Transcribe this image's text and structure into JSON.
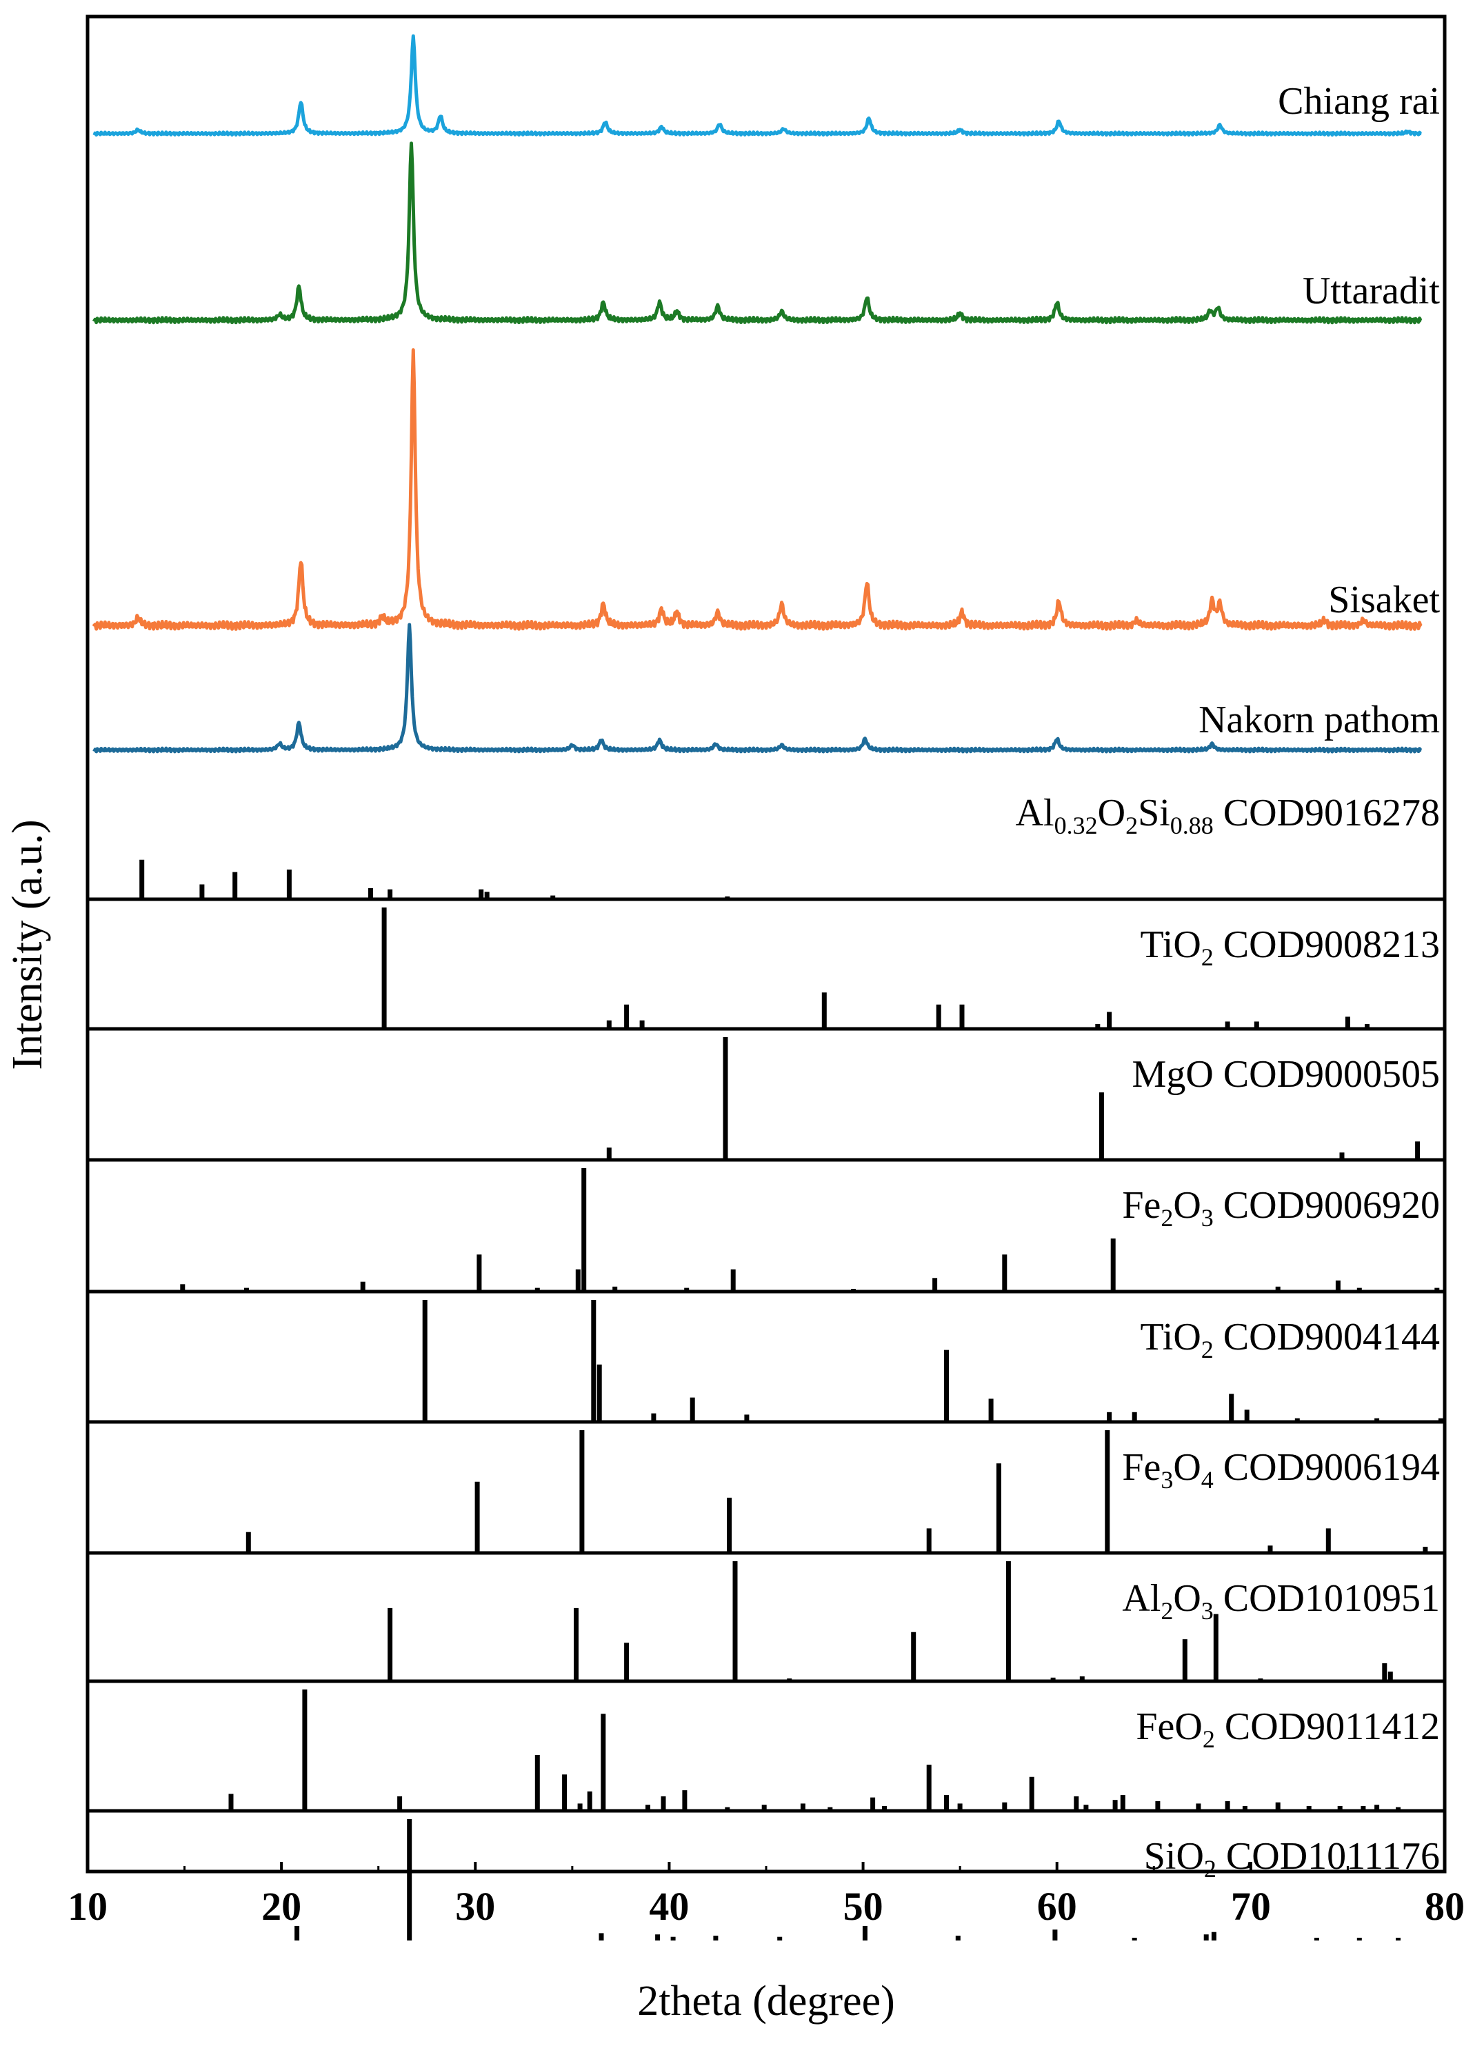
{
  "chart_data": {
    "type": "line",
    "xlabel": "2theta (degree)",
    "ylabel": "Intensity (a.u.)",
    "xlim": [
      10,
      80
    ],
    "xticks": [
      10,
      20,
      30,
      40,
      50,
      60,
      70,
      80
    ],
    "grid": false,
    "samples": [
      {
        "name": "Chiang rai",
        "color": "#1ba3dc",
        "baseline_frac": 0.045,
        "peaks": [
          [
            12.6,
            0.04
          ],
          [
            21.0,
            0.33
          ],
          [
            26.8,
            1.0
          ],
          [
            28.2,
            0.18
          ],
          [
            36.7,
            0.12
          ],
          [
            39.6,
            0.07
          ],
          [
            42.6,
            0.1
          ],
          [
            45.9,
            0.05
          ],
          [
            50.3,
            0.16
          ],
          [
            55.0,
            0.04
          ],
          [
            60.1,
            0.13
          ],
          [
            68.4,
            0.09
          ],
          [
            78.1,
            0.02
          ]
        ]
      },
      {
        "name": "Uttaradit",
        "color": "#1c7a25",
        "baseline_frac": 0.03,
        "peaks": [
          [
            19.9,
            0.03
          ],
          [
            20.9,
            0.19
          ],
          [
            26.7,
            1.0
          ],
          [
            36.6,
            0.1
          ],
          [
            39.5,
            0.1
          ],
          [
            40.4,
            0.05
          ],
          [
            42.5,
            0.08
          ],
          [
            45.8,
            0.05
          ],
          [
            50.2,
            0.13
          ],
          [
            55.0,
            0.04
          ],
          [
            60.0,
            0.1
          ],
          [
            67.9,
            0.05
          ],
          [
            68.3,
            0.07
          ]
        ]
      },
      {
        "name": "Sisaket",
        "color": "#f57a3a",
        "baseline_frac": 0.02,
        "peaks": [
          [
            12.6,
            0.03
          ],
          [
            21.0,
            0.24
          ],
          [
            25.2,
            0.03
          ],
          [
            26.8,
            1.0
          ],
          [
            36.6,
            0.08
          ],
          [
            39.6,
            0.06
          ],
          [
            40.4,
            0.05
          ],
          [
            42.5,
            0.05
          ],
          [
            45.8,
            0.08
          ],
          [
            50.2,
            0.16
          ],
          [
            55.1,
            0.05
          ],
          [
            60.1,
            0.09
          ],
          [
            64.1,
            0.02
          ],
          [
            68.0,
            0.09
          ],
          [
            68.4,
            0.08
          ],
          [
            73.8,
            0.02
          ],
          [
            75.8,
            0.02
          ]
        ]
      },
      {
        "name": "Nakorn pathom",
        "color": "#1d6b99",
        "baseline_frac": 0.03,
        "peaks": [
          [
            19.9,
            0.05
          ],
          [
            20.9,
            0.22
          ],
          [
            26.6,
            1.0
          ],
          [
            35.0,
            0.04
          ],
          [
            36.5,
            0.08
          ],
          [
            39.5,
            0.08
          ],
          [
            42.4,
            0.05
          ],
          [
            45.8,
            0.04
          ],
          [
            50.1,
            0.09
          ],
          [
            60.0,
            0.09
          ],
          [
            68.0,
            0.05
          ]
        ]
      }
    ],
    "references": [
      {
        "formula": [
          "Al",
          "0.32",
          "O",
          "2",
          "Si",
          "0.88"
        ],
        "code": "COD9016278",
        "lines": [
          [
            12.8,
            0.32
          ],
          [
            15.9,
            0.12
          ],
          [
            17.6,
            0.22
          ],
          [
            20.4,
            0.24
          ],
          [
            24.6,
            0.09
          ],
          [
            25.6,
            0.08
          ],
          [
            30.3,
            0.08
          ],
          [
            30.6,
            0.06
          ],
          [
            34.0,
            0.03
          ],
          [
            43.0,
            0.02
          ]
        ]
      },
      {
        "formula": [
          "TiO",
          "2"
        ],
        "code": "COD9008213",
        "lines": [
          [
            25.3,
            1.0
          ],
          [
            36.9,
            0.07
          ],
          [
            37.8,
            0.2
          ],
          [
            38.6,
            0.07
          ],
          [
            48.0,
            0.3
          ],
          [
            53.9,
            0.2
          ],
          [
            55.1,
            0.2
          ],
          [
            62.1,
            0.04
          ],
          [
            62.7,
            0.14
          ],
          [
            68.8,
            0.06
          ],
          [
            70.3,
            0.06
          ],
          [
            75.0,
            0.1
          ],
          [
            76.0,
            0.04
          ]
        ]
      },
      {
        "formula": [
          "MgO"
        ],
        "code": "COD9000505",
        "lines": [
          [
            36.9,
            0.1
          ],
          [
            42.9,
            1.0
          ],
          [
            62.3,
            0.55
          ],
          [
            74.7,
            0.06
          ],
          [
            78.6,
            0.15
          ]
        ]
      },
      {
        "formula": [
          "Fe",
          "2",
          "O",
          "3"
        ],
        "code": "COD9006920",
        "lines": [
          [
            14.9,
            0.06
          ],
          [
            18.2,
            0.03
          ],
          [
            24.2,
            0.08
          ],
          [
            30.2,
            0.3
          ],
          [
            33.2,
            0.03
          ],
          [
            35.6,
            1.0
          ],
          [
            35.3,
            0.18
          ],
          [
            37.2,
            0.04
          ],
          [
            40.9,
            0.03
          ],
          [
            43.3,
            0.18
          ],
          [
            49.5,
            0.02
          ],
          [
            53.7,
            0.11
          ],
          [
            57.3,
            0.3
          ],
          [
            62.9,
            0.43
          ],
          [
            71.4,
            0.04
          ],
          [
            74.5,
            0.09
          ],
          [
            75.6,
            0.03
          ],
          [
            79.6,
            0.03
          ]
        ]
      },
      {
        "formula": [
          "TiO",
          "2"
        ],
        "code": "COD9004144",
        "lines": [
          [
            27.4,
            1.0
          ],
          [
            36.1,
            1.0
          ],
          [
            36.4,
            0.47
          ],
          [
            39.2,
            0.07
          ],
          [
            41.2,
            0.2
          ],
          [
            44.0,
            0.06
          ],
          [
            54.3,
            0.59
          ],
          [
            56.6,
            0.19
          ],
          [
            62.7,
            0.08
          ],
          [
            64.0,
            0.08
          ],
          [
            69.0,
            0.23
          ],
          [
            69.8,
            0.1
          ],
          [
            72.4,
            0.03
          ],
          [
            76.5,
            0.03
          ],
          [
            79.8,
            0.03
          ]
        ]
      },
      {
        "formula": [
          "Fe",
          "3",
          "O",
          "4"
        ],
        "code": "COD9006194",
        "lines": [
          [
            18.3,
            0.17
          ],
          [
            30.1,
            0.58
          ],
          [
            35.5,
            1.0
          ],
          [
            43.1,
            0.45
          ],
          [
            53.4,
            0.2
          ],
          [
            57.0,
            0.73
          ],
          [
            62.6,
            1.0
          ],
          [
            71.0,
            0.06
          ],
          [
            74.0,
            0.2
          ],
          [
            79.0,
            0.05
          ]
        ]
      },
      {
        "formula": [
          "Al",
          "2",
          "O",
          "3"
        ],
        "code": "COD1010951",
        "lines": [
          [
            25.6,
            0.61
          ],
          [
            35.2,
            0.61
          ],
          [
            37.8,
            0.32
          ],
          [
            43.4,
            1.0
          ],
          [
            46.2,
            0.02
          ],
          [
            52.6,
            0.41
          ],
          [
            57.5,
            1.0
          ],
          [
            59.8,
            0.03
          ],
          [
            61.3,
            0.04
          ],
          [
            66.6,
            0.35
          ],
          [
            68.2,
            0.56
          ],
          [
            70.5,
            0.02
          ],
          [
            76.9,
            0.15
          ],
          [
            77.2,
            0.08
          ]
        ]
      },
      {
        "formula": [
          "FeO",
          "2"
        ],
        "code": "COD9011412",
        "lines": [
          [
            17.4,
            0.14
          ],
          [
            21.2,
            1.0
          ],
          [
            26.1,
            0.12
          ],
          [
            33.2,
            0.46
          ],
          [
            34.6,
            0.3
          ],
          [
            35.4,
            0.06
          ],
          [
            35.9,
            0.16
          ],
          [
            36.6,
            0.8
          ],
          [
            38.9,
            0.05
          ],
          [
            39.7,
            0.12
          ],
          [
            40.8,
            0.17
          ],
          [
            43.0,
            0.03
          ],
          [
            44.9,
            0.05
          ],
          [
            46.9,
            0.06
          ],
          [
            48.3,
            0.03
          ],
          [
            50.5,
            0.11
          ],
          [
            51.1,
            0.04
          ],
          [
            53.4,
            0.38
          ],
          [
            54.3,
            0.13
          ],
          [
            55.0,
            0.06
          ],
          [
            57.3,
            0.07
          ],
          [
            58.7,
            0.28
          ],
          [
            61.0,
            0.12
          ],
          [
            61.5,
            0.05
          ],
          [
            63.0,
            0.09
          ],
          [
            63.4,
            0.13
          ],
          [
            65.2,
            0.08
          ],
          [
            67.3,
            0.06
          ],
          [
            68.8,
            0.08
          ],
          [
            69.7,
            0.04
          ],
          [
            71.4,
            0.07
          ],
          [
            73.0,
            0.04
          ],
          [
            74.6,
            0.04
          ],
          [
            75.8,
            0.04
          ],
          [
            76.5,
            0.05
          ],
          [
            77.6,
            0.03
          ]
        ]
      },
      {
        "formula": [
          "SiO",
          "2"
        ],
        "code": "COD1011176",
        "lines": [
          [
            20.8,
            0.12
          ],
          [
            26.6,
            1.0
          ],
          [
            36.5,
            0.06
          ],
          [
            39.4,
            0.05
          ],
          [
            40.2,
            0.03
          ],
          [
            42.4,
            0.04
          ],
          [
            45.7,
            0.03
          ],
          [
            50.1,
            0.12
          ],
          [
            54.9,
            0.04
          ],
          [
            59.9,
            0.09
          ],
          [
            64.0,
            0.02
          ],
          [
            67.7,
            0.05
          ],
          [
            68.1,
            0.07
          ],
          [
            73.4,
            0.02
          ],
          [
            75.6,
            0.02
          ],
          [
            77.6,
            0.02
          ]
        ]
      }
    ]
  }
}
